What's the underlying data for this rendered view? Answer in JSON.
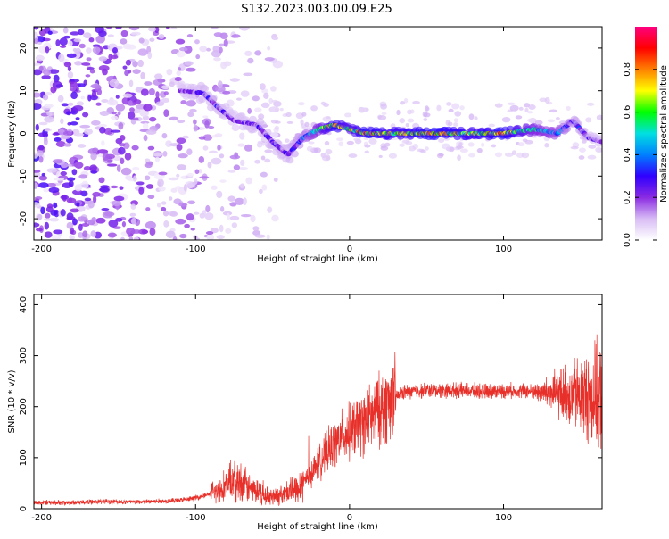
{
  "title": "S132.2023.003.00.09.E25",
  "chart_data": [
    {
      "type": "heatmap",
      "xlabel": "Height of straight line (km)",
      "ylabel": "Frequency (Hz)",
      "xlim": [
        -205,
        164
      ],
      "ylim": [
        -25,
        25
      ],
      "xticks": [
        -200,
        -100,
        0,
        100
      ],
      "yticks": [
        -20,
        -10,
        0,
        10,
        20
      ],
      "colorbar": {
        "label": "Normalized spectral amplitude",
        "range": [
          0,
          1
        ],
        "ticks": [
          "0.0",
          "0.2",
          "0.4",
          "0.6",
          "0.8"
        ],
        "colormap": [
          "#ffffff",
          "#d8bcf5",
          "#8a2be2",
          "#3000ff",
          "#0080ff",
          "#00e0e0",
          "#00ff00",
          "#ffff00",
          "#ff8000",
          "#ff0000",
          "#ff0080"
        ]
      },
      "ridge": [
        {
          "x": -110,
          "freq": 10,
          "amp": 0.25
        },
        {
          "x": -95,
          "freq": 9.5,
          "amp": 0.3
        },
        {
          "x": -85,
          "freq": 6,
          "amp": 0.3
        },
        {
          "x": -75,
          "freq": 3,
          "amp": 0.25
        },
        {
          "x": -60,
          "freq": 2,
          "amp": 0.3
        },
        {
          "x": -50,
          "freq": -2,
          "amp": 0.3
        },
        {
          "x": -40,
          "freq": -5,
          "amp": 0.3
        },
        {
          "x": -30,
          "freq": -1,
          "amp": 0.4
        },
        {
          "x": -20,
          "freq": 1,
          "amp": 0.6
        },
        {
          "x": -10,
          "freq": 2,
          "amp": 0.9
        },
        {
          "x": 0,
          "freq": 1,
          "amp": 0.7
        },
        {
          "x": 10,
          "freq": 0,
          "amp": 0.9
        },
        {
          "x": 30,
          "freq": 0,
          "amp": 0.8
        },
        {
          "x": 55,
          "freq": 0,
          "amp": 0.9
        },
        {
          "x": 80,
          "freq": 0,
          "amp": 0.8
        },
        {
          "x": 100,
          "freq": 0,
          "amp": 0.9
        },
        {
          "x": 120,
          "freq": 1,
          "amp": 0.6
        },
        {
          "x": 135,
          "freq": 0,
          "amp": 0.5
        },
        {
          "x": 145,
          "freq": 3,
          "amp": 0.35
        },
        {
          "x": 155,
          "freq": -1,
          "amp": 0.3
        },
        {
          "x": 164,
          "freq": -2,
          "amp": 0.25
        }
      ]
    },
    {
      "type": "line",
      "xlabel": "Height of straight line (km)",
      "ylabel": "SNR (10 * v/v)",
      "xlim": [
        -205,
        164
      ],
      "ylim": [
        0,
        420
      ],
      "xticks": [
        -200,
        -100,
        0,
        100
      ],
      "yticks": [
        0,
        100,
        200,
        300,
        400
      ],
      "color": "#e8302a",
      "series": [
        {
          "x": -205,
          "y": 12
        },
        {
          "x": -180,
          "y": 12
        },
        {
          "x": -160,
          "y": 14
        },
        {
          "x": -140,
          "y": 13
        },
        {
          "x": -120,
          "y": 15
        },
        {
          "x": -105,
          "y": 18
        },
        {
          "x": -95,
          "y": 25
        },
        {
          "x": -85,
          "y": 35
        },
        {
          "x": -78,
          "y": 50
        },
        {
          "x": -72,
          "y": 55
        },
        {
          "x": -65,
          "y": 40
        },
        {
          "x": -55,
          "y": 25
        },
        {
          "x": -45,
          "y": 25
        },
        {
          "x": -35,
          "y": 40
        },
        {
          "x": -25,
          "y": 70
        },
        {
          "x": -15,
          "y": 110
        },
        {
          "x": -5,
          "y": 140
        },
        {
          "x": 5,
          "y": 160
        },
        {
          "x": 15,
          "y": 180
        },
        {
          "x": 25,
          "y": 210
        },
        {
          "x": 35,
          "y": 228
        },
        {
          "x": 50,
          "y": 232
        },
        {
          "x": 70,
          "y": 232
        },
        {
          "x": 90,
          "y": 230
        },
        {
          "x": 110,
          "y": 232
        },
        {
          "x": 125,
          "y": 228
        },
        {
          "x": 135,
          "y": 225
        },
        {
          "x": 145,
          "y": 222
        },
        {
          "x": 155,
          "y": 220
        },
        {
          "x": 164,
          "y": 220
        }
      ]
    }
  ]
}
